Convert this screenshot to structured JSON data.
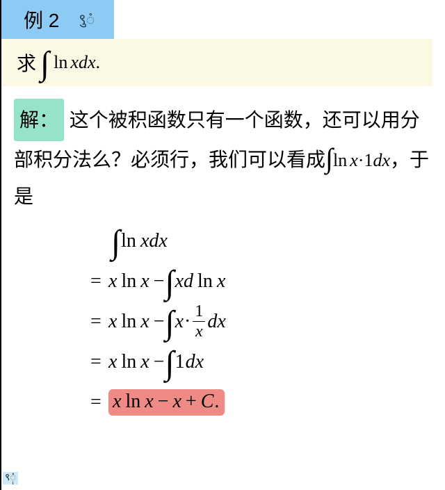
{
  "header": {
    "label": "例 2",
    "decor": "९ुံ"
  },
  "problem": {
    "prefix": "求",
    "integral": "∫",
    "body_ln": "ln",
    "body_xdx": "xdx",
    "suffix": "."
  },
  "solution": {
    "label": "解：",
    "text1": "这个被积函数只有一个函数，还可以用分部积分法么？必须行，我们可以看成",
    "inline": {
      "integral": "∫",
      "ln": "ln",
      "x": "x",
      "dot": "·",
      "one_dx": "1dx"
    },
    "text2": "，于是"
  },
  "derivation": {
    "line1": {
      "integral": "∫",
      "ln": "ln",
      "xdx": "xdx"
    },
    "line2": {
      "eq": "=",
      "x": "x",
      "ln": "ln",
      "x2": "x",
      "minus": "−",
      "integral": "∫",
      "xd": "xd",
      "ln2": "ln",
      "x3": "x"
    },
    "line3": {
      "eq": "=",
      "x": "x",
      "ln": "ln",
      "x2": "x",
      "minus": "−",
      "integral": "∫",
      "x3": "x",
      "dot": "·",
      "num": "1",
      "den": "x",
      "dx": "dx"
    },
    "line4": {
      "eq": "=",
      "x": "x",
      "ln": "ln",
      "x2": "x",
      "minus": "−",
      "integral": "∫",
      "one_dx": "1dx"
    },
    "line5": {
      "eq": "=",
      "x": "x",
      "ln": "ln",
      "x2": "x",
      "minus": "−",
      "x3": "x",
      "plus": "+",
      "C": "C",
      "period": "."
    }
  },
  "footer": {
    "glyph": "९ုံ"
  },
  "colors": {
    "header_bg": "#8ecbf4",
    "problem_bg": "#fbf9e4",
    "solution_label_bg": "#97e3c8",
    "highlight_bg": "#ef8a85",
    "border": "#000000",
    "footer_bg": "#c7e4f6"
  }
}
